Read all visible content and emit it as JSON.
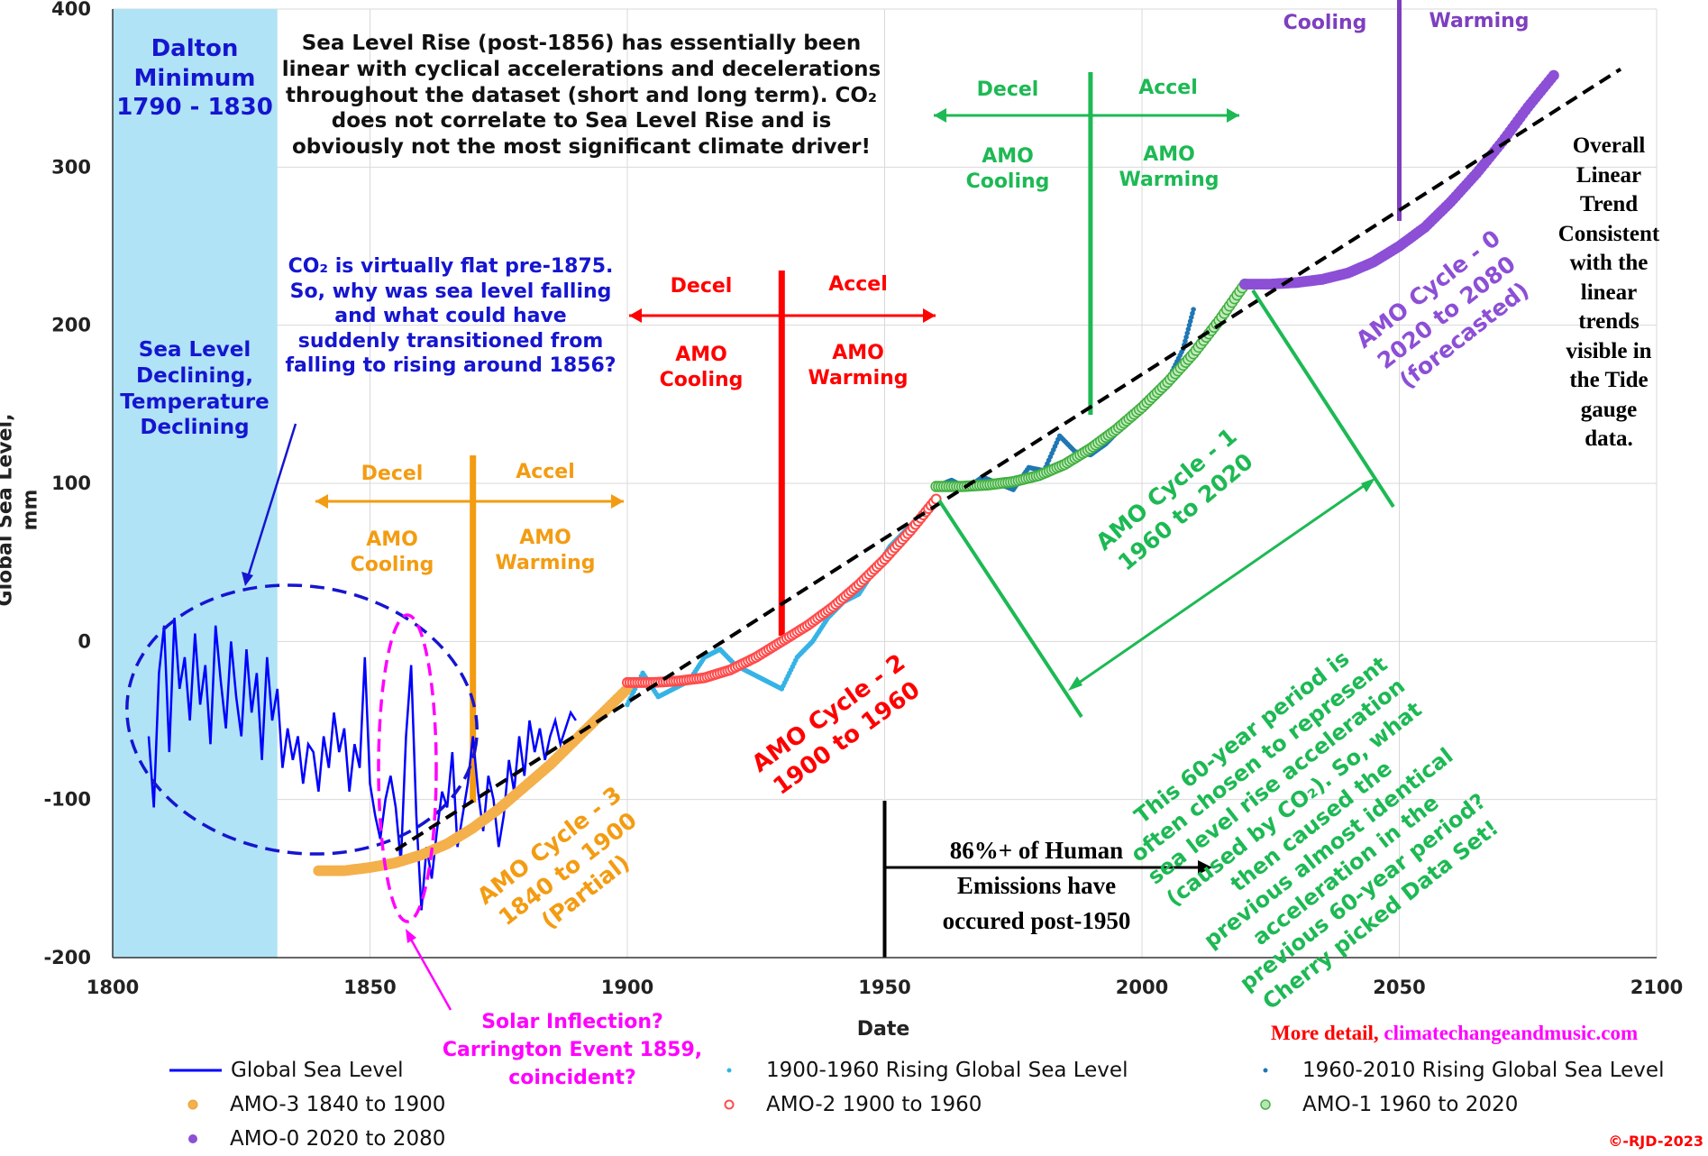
{
  "chart_data": {
    "type": "line",
    "xlabel": "Date",
    "ylabel": "Global Sea Level, mm",
    "xlim": [
      1800,
      2100
    ],
    "ylim": [
      -200,
      400
    ],
    "xticks": [
      "1800",
      "1850",
      "1900",
      "1950",
      "2000",
      "2050",
      "2100"
    ],
    "yticks": [
      "-200",
      "-100",
      "0",
      "100",
      "200",
      "300",
      "400"
    ],
    "grid": true,
    "legend_position": "bottom",
    "series": [
      {
        "name": "Global Sea Level",
        "style": "line",
        "color": "#0000ff",
        "x": [
          1807,
          1808,
          1809,
          1810,
          1811,
          1812,
          1813,
          1814,
          1815,
          1816,
          1817,
          1818,
          1819,
          1820,
          1821,
          1822,
          1823,
          1824,
          1825,
          1826,
          1827,
          1828,
          1829,
          1830,
          1831,
          1832,
          1833,
          1834,
          1835,
          1836,
          1837,
          1838,
          1839,
          1840,
          1841,
          1842,
          1843,
          1844,
          1845,
          1846,
          1847,
          1848,
          1849,
          1850,
          1851,
          1852,
          1853,
          1854,
          1855,
          1856,
          1857,
          1858,
          1859,
          1860,
          1861,
          1862,
          1863,
          1864,
          1865,
          1866,
          1867,
          1868,
          1869,
          1870,
          1871,
          1872,
          1873,
          1874,
          1875,
          1876,
          1877,
          1878,
          1879,
          1880,
          1881,
          1882,
          1883,
          1884,
          1885,
          1886,
          1887,
          1888,
          1889,
          1890
        ],
        "values": [
          -60,
          -105,
          -20,
          10,
          -70,
          15,
          -30,
          -10,
          -50,
          5,
          -40,
          -15,
          -65,
          10,
          -25,
          -55,
          0,
          -35,
          -60,
          -5,
          -45,
          -20,
          -75,
          -10,
          -50,
          -30,
          -80,
          -55,
          -75,
          -60,
          -90,
          -65,
          -70,
          -95,
          -60,
          -80,
          -45,
          -70,
          -55,
          -95,
          -65,
          -80,
          -10,
          -90,
          -110,
          -125,
          -100,
          -85,
          -105,
          -140,
          -60,
          -15,
          -110,
          -170,
          -130,
          -150,
          -120,
          -95,
          -105,
          -70,
          -130,
          -110,
          -90,
          -60,
          -95,
          -120,
          -85,
          -100,
          -130,
          -110,
          -75,
          -95,
          -60,
          -85,
          -50,
          -70,
          -55,
          -75,
          -60,
          -50,
          -65,
          -55,
          -45,
          -50
        ]
      },
      {
        "name": "AMO-3 1840 to 1900",
        "style": "markers",
        "color": "#f4b04a",
        "x": [
          1840,
          1845,
          1850,
          1855,
          1860,
          1865,
          1870,
          1875,
          1880,
          1885,
          1890,
          1895,
          1900
        ],
        "values": [
          -145,
          -145,
          -143,
          -140,
          -135,
          -128,
          -118,
          -106,
          -92,
          -78,
          -62,
          -46,
          -30
        ]
      },
      {
        "name": "1900-1960 Rising Global Sea Level",
        "style": "markers",
        "color": "#36b3e6",
        "x": [
          1900,
          1903,
          1906,
          1909,
          1912,
          1915,
          1918,
          1921,
          1924,
          1927,
          1930,
          1933,
          1936,
          1939,
          1942,
          1945,
          1948,
          1951,
          1954,
          1957,
          1960
        ],
        "values": [
          -40,
          -20,
          -35,
          -30,
          -25,
          -10,
          -5,
          -15,
          -20,
          -25,
          -30,
          -10,
          0,
          15,
          25,
          30,
          45,
          60,
          70,
          80,
          90
        ]
      },
      {
        "name": "AMO-2 1900 to 1960",
        "style": "markers",
        "color": "#ff4b4b",
        "x": [
          1900,
          1905,
          1910,
          1915,
          1920,
          1925,
          1930,
          1935,
          1940,
          1945,
          1950,
          1955,
          1960
        ],
        "values": [
          -26,
          -26,
          -25,
          -23,
          -18,
          -10,
          0,
          10,
          22,
          36,
          52,
          70,
          90
        ]
      },
      {
        "name": "1960-2010 Rising Global Sea Level",
        "style": "markers",
        "color": "#1f77b4",
        "x": [
          1960,
          1963,
          1966,
          1969,
          1972,
          1975,
          1978,
          1981,
          1984,
          1987,
          1990,
          1993,
          1996,
          1999,
          2002,
          2005,
          2008,
          2010
        ],
        "values": [
          98,
          102,
          97,
          104,
          100,
          96,
          110,
          108,
          130,
          120,
          118,
          125,
          135,
          145,
          155,
          165,
          185,
          210
        ]
      },
      {
        "name": "AMO-1 1960 to 2020",
        "style": "markers",
        "color": "#6ec86e",
        "x": [
          1960,
          1965,
          1970,
          1975,
          1980,
          1985,
          1990,
          1995,
          2000,
          2005,
          2010,
          2015,
          2020
        ],
        "values": [
          98,
          98,
          99,
          101,
          105,
          112,
          122,
          134,
          148,
          164,
          182,
          203,
          226
        ]
      },
      {
        "name": "AMO-0 2020 to 2080",
        "style": "markers",
        "color": "#8c4fd6",
        "x": [
          2020,
          2025,
          2030,
          2035,
          2040,
          2045,
          2050,
          2055,
          2060,
          2065,
          2070,
          2075,
          2080
        ],
        "values": [
          226,
          226,
          227,
          229,
          233,
          240,
          250,
          262,
          278,
          296,
          316,
          338,
          358
        ]
      },
      {
        "name": "",
        "style": "trendline",
        "color": "#000000",
        "x": [
          1855,
          2093
        ],
        "values": [
          -132,
          362
        ]
      }
    ]
  },
  "annotations": {
    "dalton": [
      "Dalton",
      "Minimum",
      "1790 - 1830"
    ],
    "main_text": [
      "Sea Level Rise (post-1856) has essentially been",
      "linear with cyclical accelerations and decelerations",
      "throughout the dataset (short and long term). CO₂",
      "does not correlate to Sea Level Rise and is",
      "obviously not the most significant climate driver!"
    ],
    "co2_question": [
      "CO₂ is virtually flat pre-1875.",
      "So, why was sea level falling",
      "and what could have",
      "suddenly transitioned from",
      "falling to rising around 1856?"
    ],
    "sea_level_declining": [
      "Sea Level",
      "Declining,",
      "Temperature",
      "Declining"
    ],
    "decel": "Decel",
    "accel": "Accel",
    "amo_cooling": [
      "AMO",
      "Cooling"
    ],
    "amo_warming": [
      "AMO",
      "Warming"
    ],
    "top_cooling": "Cooling",
    "top_warming": "Warming",
    "overall_trend": [
      "Overall",
      "Linear",
      "Trend",
      "Consistent",
      "with the",
      "linear",
      "trends",
      "visible in",
      "the Tide",
      "gauge",
      "data."
    ],
    "amo_cycle_3": [
      "AMO Cycle - 3",
      "1840 to 1900",
      "(Partial)"
    ],
    "amo_cycle_2": [
      "AMO Cycle - 2",
      "1900 to 1960"
    ],
    "amo_cycle_1": [
      "AMO Cycle - 1",
      "1960 to 2020"
    ],
    "amo_cycle_0": [
      "AMO Cycle - 0",
      "2020 to 2080",
      "(forecasted)"
    ],
    "sixty_year": [
      "This 60-year period is",
      "often chosen to represent",
      "sea level rise acceleration",
      "(caused by CO₂). So, what",
      "then caused the",
      "previous almost identical",
      "acceleration in the",
      "previous 60-year period?",
      "Cherry picked Data Set!"
    ],
    "human_emissions": [
      "86%+ of Human",
      "Emissions have",
      "occured post-1950"
    ],
    "solar": [
      "Solar Inflection?",
      "Carrington Event 1859,",
      "coincident?"
    ],
    "more_detail_prefix": "More detail, ",
    "more_detail_site": "climatechangeandmusic.com",
    "copyright": "©-RJD-2023"
  },
  "colors": {
    "dalton_band": "#b0e3f5",
    "blue_text": "#0000ff",
    "orange": "#f39c12",
    "red": "#ff0000",
    "green": "#1db954",
    "purple": "#7e3fbf",
    "magenta": "#ff00ff",
    "grid": "#d9d9d9"
  }
}
